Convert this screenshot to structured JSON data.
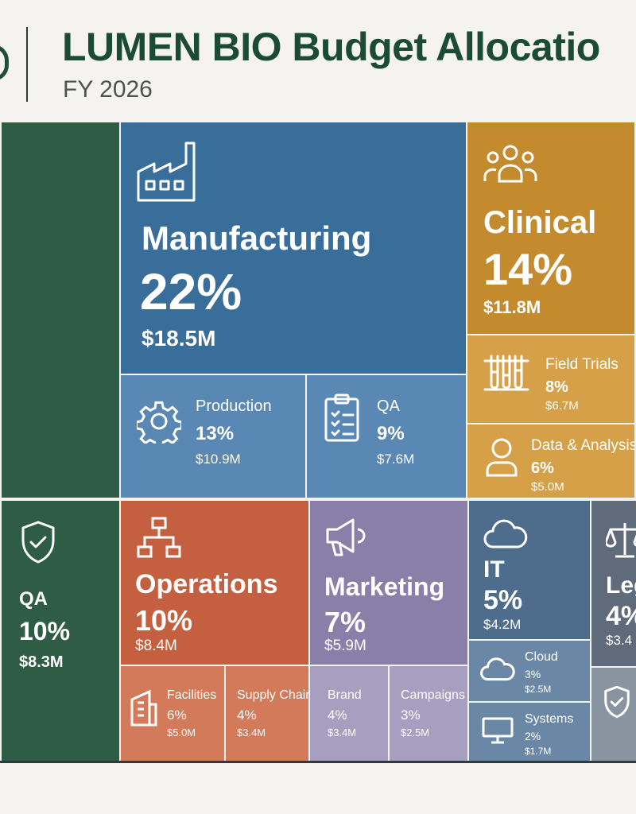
{
  "header": {
    "title": "LUMEN BIO Budget Allocatio",
    "subtitle": "FY 2026"
  },
  "colors": {
    "green": "#2e5c45",
    "blue_dark": "#3a6e9a",
    "blue_light": "#5888b3",
    "gold_dark": "#c48a2e",
    "gold_light": "#d6a048",
    "red_dark": "#c4603f",
    "red_light": "#d27a5a",
    "purple_dark": "#8a7fa8",
    "purple_light": "#a79fc0",
    "slate_dark": "#4e6d8c",
    "slate_light": "#6a88a6",
    "gray_dark": "#5f6a7a",
    "gray_light": "#8a93a0"
  },
  "chart_data": {
    "type": "treemap",
    "title": "LUMEN BIO Budget Allocatio",
    "subtitle": "FY 2026",
    "nodes": [
      {
        "name": "Manufacturing",
        "percent": "22%",
        "amount": "$18.5M",
        "icon": "factory-icon",
        "children": [
          {
            "name": "Production",
            "percent": "13%",
            "amount": "$10.9M",
            "icon": "gear-icon"
          },
          {
            "name": "QA",
            "percent": "9%",
            "amount": "$7.6M",
            "icon": "clipboard-checklist-icon"
          }
        ]
      },
      {
        "name": "Clinical",
        "percent": "14%",
        "amount": "$11.8M",
        "icon": "people-group-icon",
        "children": [
          {
            "name": "Field Trials",
            "percent": "8%",
            "amount": "$6.7M",
            "icon": "test-tubes-icon"
          },
          {
            "name": "Data & Analysis",
            "percent": "6%",
            "amount": "$5.0M",
            "icon": "person-icon"
          }
        ]
      },
      {
        "name": "QA",
        "percent": "10%",
        "amount": "$8.3M",
        "icon": "shield-check-icon"
      },
      {
        "name": "Operations",
        "percent": "10%",
        "amount": "$8.4M",
        "icon": "org-chart-icon",
        "children": [
          {
            "name": "Facilities",
            "percent": "6%",
            "amount": "$5.0M",
            "icon": "building-icon"
          },
          {
            "name": "Supply Chain",
            "percent": "4%",
            "amount": "$3.4M"
          }
        ]
      },
      {
        "name": "Marketing",
        "percent": "7%",
        "amount": "$5.9M",
        "icon": "megaphone-icon",
        "children": [
          {
            "name": "Brand",
            "percent": "4%",
            "amount": "$3.4M"
          },
          {
            "name": "Campaigns",
            "percent": "3%",
            "amount": "$2.5M"
          }
        ]
      },
      {
        "name": "IT",
        "percent": "5%",
        "amount": "$4.2M",
        "icon": "cloud-icon",
        "children": [
          {
            "name": "Cloud",
            "percent": "3%",
            "amount": "$2.5M",
            "icon": "cloud-icon"
          },
          {
            "name": "Systems",
            "percent": "2%",
            "amount": "$1.7M",
            "icon": "monitor-icon"
          }
        ]
      },
      {
        "name": "Leg",
        "percent": "4%",
        "amount": "$3.4",
        "icon": "scales-icon",
        "children": [
          {
            "name": "",
            "percent": "",
            "amount": "",
            "icon": "shield-check-icon"
          }
        ]
      }
    ]
  }
}
